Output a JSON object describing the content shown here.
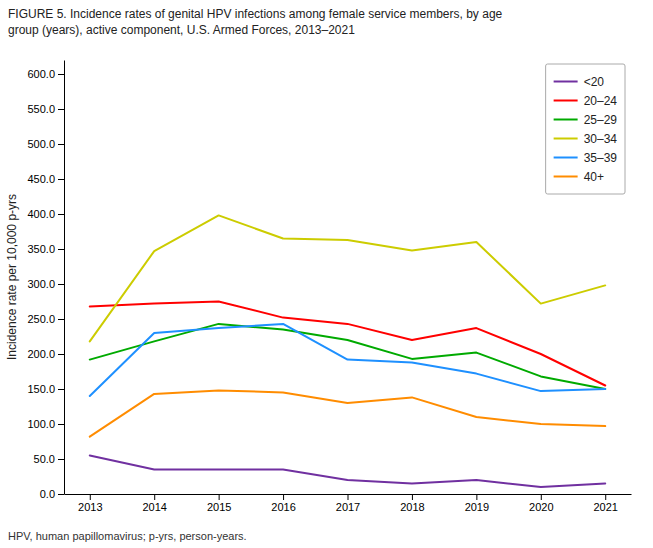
{
  "chart_data": {
    "type": "line",
    "title": "FIGURE 5. Incidence rates of genital HPV infections among female service members, by age\ngroup (years), active component, U.S. Armed Forces, 2013–2021",
    "ylabel": "Incidence rate per 10,000 p-yrs",
    "annotations": [
      "HPV, human papillomavirus; p-yrs, person-years."
    ],
    "x": [
      2013,
      2014,
      2015,
      2016,
      2017,
      2018,
      2019,
      2020,
      2021
    ],
    "series": [
      {
        "name": "<20",
        "color": "#7030a0",
        "values": [
          55,
          35,
          35,
          35,
          20,
          15,
          20,
          10,
          15
        ]
      },
      {
        "name": "20–24",
        "color": "#ff0000",
        "values": [
          268,
          272,
          275,
          252,
          243,
          220,
          237,
          200,
          155
        ]
      },
      {
        "name": "25–29",
        "color": "#00aa00",
        "values": [
          192,
          218,
          243,
          235,
          220,
          193,
          202,
          168,
          150
        ]
      },
      {
        "name": "30–34",
        "color": "#cccc00",
        "values": [
          218,
          347,
          398,
          365,
          363,
          348,
          360,
          272,
          298
        ]
      },
      {
        "name": "35–39",
        "color": "#1e90ff",
        "values": [
          140,
          230,
          237,
          243,
          192,
          188,
          172,
          147,
          150
        ]
      },
      {
        "name": "40+",
        "color": "#ff8c00",
        "values": [
          82,
          143,
          148,
          145,
          130,
          138,
          110,
          100,
          97
        ]
      }
    ],
    "xlim": [
      2012.6,
      2021.4
    ],
    "xticks": [
      2013,
      2014,
      2015,
      2016,
      2017,
      2018,
      2019,
      2020,
      2021
    ],
    "ylim": [
      0,
      620
    ],
    "yticks": [
      {
        "value": 0,
        "label": "0.0"
      },
      {
        "value": 50,
        "label": "50.0"
      },
      {
        "value": 100,
        "label": "100.0"
      },
      {
        "value": 150,
        "label": "150.0"
      },
      {
        "value": 200,
        "label": "200.0"
      },
      {
        "value": 250,
        "label": "250.0"
      },
      {
        "value": 300,
        "label": "300.0"
      },
      {
        "value": 350,
        "label": "350.0"
      },
      {
        "value": 400,
        "label": "400.0"
      },
      {
        "value": 450,
        "label": "450.0"
      },
      {
        "value": 500,
        "label": "500.0"
      },
      {
        "value": 550,
        "label": "550.0"
      },
      {
        "value": 600,
        "label": "600.0"
      }
    ],
    "grid": false,
    "legend": "upper right"
  }
}
